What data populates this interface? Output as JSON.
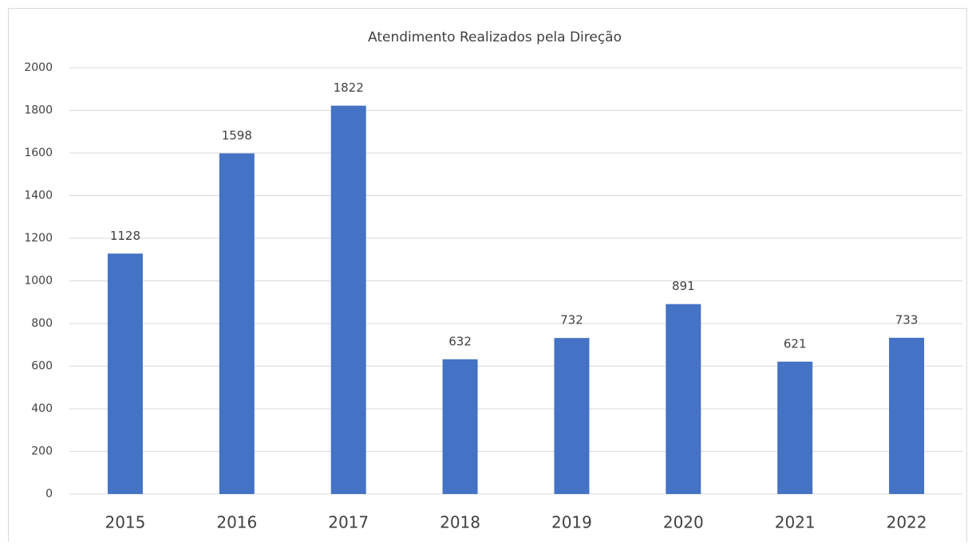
{
  "chart_data": {
    "type": "bar",
    "title": "Atendimento Realizados pela Direção",
    "categories": [
      "2015",
      "2016",
      "2017",
      "2018",
      "2019",
      "2020",
      "2021",
      "2022"
    ],
    "values": [
      1128,
      1598,
      1822,
      632,
      732,
      891,
      621,
      733
    ],
    "color": "#4472c4",
    "ylim": [
      0,
      2000
    ],
    "yticks": [
      0,
      200,
      400,
      600,
      800,
      1000,
      1200,
      1400,
      1600,
      1800,
      2000
    ],
    "grid": true
  }
}
